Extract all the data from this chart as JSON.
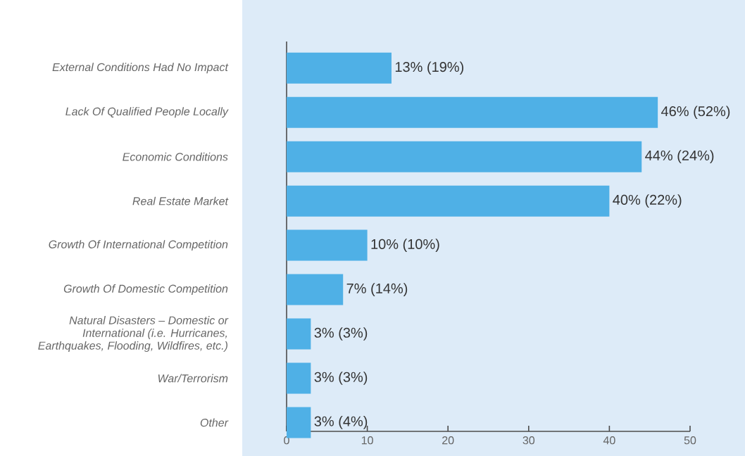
{
  "chart_data": {
    "type": "bar",
    "orientation": "horizontal",
    "categories": [
      "External Conditions Had No Impact",
      "Lack Of Qualified People Locally",
      "Economic Conditions",
      "Real Estate Market",
      "Growth Of International Competition",
      "Growth Of Domestic Competition",
      "Natural Disasters – Domestic or International (i.e. Hurricanes, Earthquakes, Flooding, Wildfires, etc.)",
      "War/Terrorism",
      "Other"
    ],
    "values": [
      13,
      46,
      44,
      40,
      10,
      7,
      3,
      3,
      3
    ],
    "value_labels": [
      "13% (19%)",
      "46% (52%)",
      "44% (24%)",
      "40% (22%)",
      "10% (10%)",
      "7% (14%)",
      "3% (3%)",
      "3% (3%)",
      "3% (4%)"
    ],
    "color": "#4fb0e6",
    "xlim": [
      0,
      50
    ],
    "xticks": [
      0,
      10,
      20,
      30,
      40,
      50
    ]
  }
}
